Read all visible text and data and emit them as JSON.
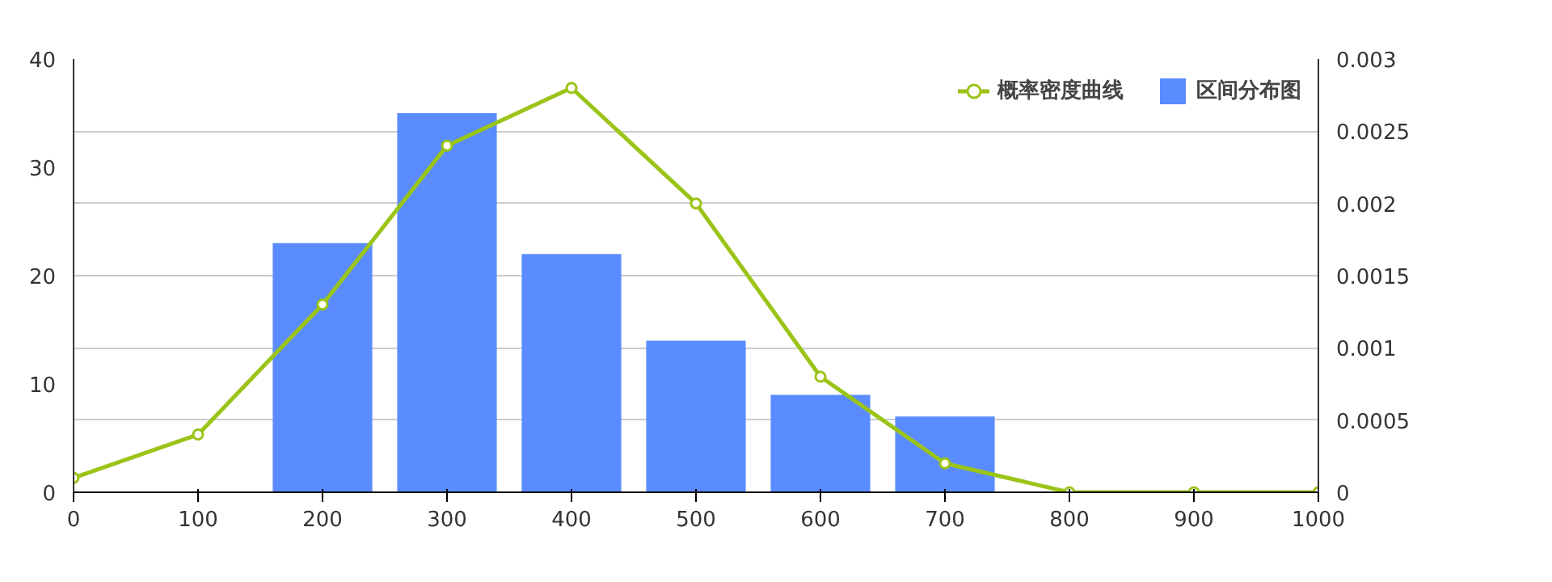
{
  "chart_data": {
    "type": "bar",
    "xlim": [
      0,
      1000
    ],
    "xticks": [
      0,
      100,
      200,
      300,
      400,
      500,
      600,
      700,
      800,
      900,
      1000
    ],
    "ylim": [
      0,
      40
    ],
    "yticks": [
      0,
      10,
      20,
      30,
      40
    ],
    "y2lim": [
      0,
      0.003
    ],
    "y2ticks": [
      0,
      0.0005,
      0.001,
      0.0015,
      0.002,
      0.0025,
      0.003
    ],
    "grid": "y2",
    "legend": "top right",
    "series": [
      {
        "name": "区间分布图",
        "color": "#5b8cff",
        "x": [
          200,
          300,
          400,
          500,
          600,
          700
        ],
        "values": [
          23,
          35,
          22,
          14,
          9,
          7
        ]
      },
      {
        "name": "概率密度曲线",
        "type": "line",
        "axis": "y2",
        "color": "#9bc418",
        "marker": "circle",
        "x": [
          0,
          100,
          200,
          300,
          400,
          500,
          600,
          700,
          800,
          900,
          1000
        ],
        "values": [
          0.0001,
          0.0004,
          0.0013,
          0.0024,
          0.0028,
          0.002,
          0.0008,
          0.0002,
          0,
          0,
          0
        ]
      }
    ]
  }
}
